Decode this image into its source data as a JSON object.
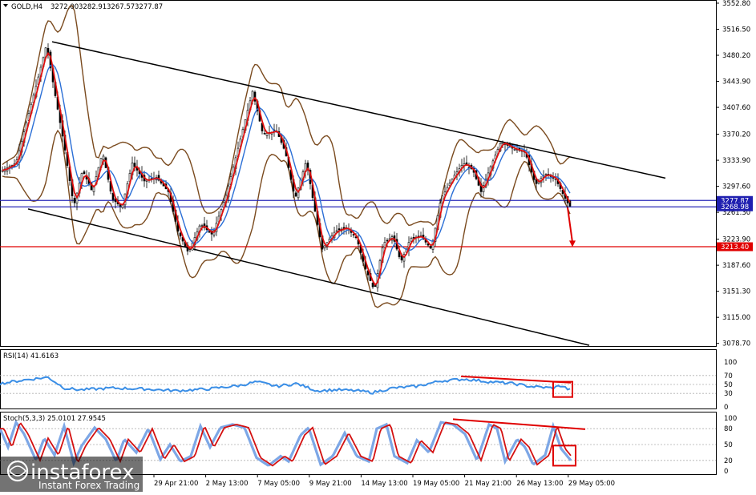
{
  "window": {
    "symbol_header": "GOLD,H4",
    "ohlc": [
      "3272.00",
      "3282.91",
      "3267.57",
      "3277.87"
    ]
  },
  "chart_data": [
    {
      "type": "line",
      "panel": "price",
      "title": "GOLD,H4",
      "price_axis_ticks": [
        "3552.80",
        "3516.50",
        "3480.20",
        "3443.90",
        "3407.60",
        "3370.20",
        "3333.90",
        "3297.60",
        "3261.30",
        "3223.90",
        "3187.60",
        "3151.30",
        "3115.00",
        "3078.70"
      ],
      "ylim": [
        3075,
        3555
      ],
      "price_tags": [
        {
          "label": "3277.87",
          "value": 3277.87,
          "color": "#1f1fb0"
        },
        {
          "label": "3268.98",
          "value": 3268.98,
          "color": "#1f1fb0"
        },
        {
          "label": "3213.40",
          "value": 3213.4,
          "color": "#e00000"
        }
      ],
      "horizontal_levels": [
        {
          "value": 3277.87,
          "color": "#2a2ab8"
        },
        {
          "value": 3268.98,
          "color": "#2a2ab8"
        },
        {
          "value": 3213.4,
          "color": "#e00000"
        }
      ],
      "channel_upper": [
        {
          "bar": 65,
          "price": 3499
        },
        {
          "bar": 830,
          "price": 3309
        }
      ],
      "channel_lower": [
        {
          "bar": 35,
          "price": 3266
        },
        {
          "bar": 735,
          "price": 3076
        }
      ],
      "close_path": [
        [
          0,
          3318
        ],
        [
          20,
          3330
        ],
        [
          35,
          3395
        ],
        [
          48,
          3450
        ],
        [
          58,
          3495
        ],
        [
          68,
          3430
        ],
        [
          80,
          3355
        ],
        [
          92,
          3270
        ],
        [
          103,
          3320
        ],
        [
          115,
          3290
        ],
        [
          128,
          3345
        ],
        [
          140,
          3280
        ],
        [
          152,
          3268
        ],
        [
          165,
          3330
        ],
        [
          180,
          3305
        ],
        [
          195,
          3310
        ],
        [
          210,
          3290
        ],
        [
          222,
          3235
        ],
        [
          235,
          3205
        ],
        [
          250,
          3245
        ],
        [
          265,
          3230
        ],
        [
          282,
          3285
        ],
        [
          298,
          3355
        ],
        [
          315,
          3430
        ],
        [
          328,
          3370
        ],
        [
          345,
          3375
        ],
        [
          356,
          3345
        ],
        [
          368,
          3280
        ],
        [
          382,
          3333
        ],
        [
          395,
          3250
        ],
        [
          402,
          3210
        ],
        [
          418,
          3235
        ],
        [
          432,
          3240
        ],
        [
          445,
          3225
        ],
        [
          455,
          3185
        ],
        [
          467,
          3152
        ],
        [
          478,
          3218
        ],
        [
          490,
          3228
        ],
        [
          500,
          3192
        ],
        [
          512,
          3225
        ],
        [
          525,
          3228
        ],
        [
          538,
          3210
        ],
        [
          550,
          3280
        ],
        [
          565,
          3310
        ],
        [
          578,
          3330
        ],
        [
          590,
          3320
        ],
        [
          600,
          3290
        ],
        [
          612,
          3325
        ],
        [
          625,
          3360
        ],
        [
          640,
          3350
        ],
        [
          655,
          3345
        ],
        [
          668,
          3300
        ],
        [
          680,
          3315
        ],
        [
          693,
          3308
        ],
        [
          703,
          3285
        ],
        [
          710,
          3270
        ]
      ],
      "forecast_arrow": {
        "from": {
          "bar": 708,
          "price": 3268
        },
        "to": {
          "bar": 714,
          "price": 3213
        },
        "color": "#e00000"
      },
      "x_tick_labels": [
        "29 Apr 21:00",
        "2 May 13:00",
        "7 May 05:00",
        "9 May 21:00",
        "14 May 13:00",
        "19 May 05:00",
        "21 May 21:00",
        "26 May 13:00",
        "29 May 05:00"
      ]
    },
    {
      "type": "line",
      "panel": "rsi",
      "title": "RSI(14) 41.6163",
      "ylim": [
        0,
        100
      ],
      "levels": [
        "100",
        "70",
        "50",
        "30",
        "0"
      ],
      "series": [
        {
          "values": [
            [
              0,
              52
            ],
            [
              30,
              60
            ],
            [
              60,
              66
            ],
            [
              80,
              42
            ],
            [
              100,
              38
            ],
            [
              140,
              42
            ],
            [
              180,
              40
            ],
            [
              220,
              36
            ],
            [
              260,
              40
            ],
            [
              300,
              48
            ],
            [
              320,
              56
            ],
            [
              345,
              46
            ],
            [
              370,
              52
            ],
            [
              395,
              36
            ],
            [
              420,
              38
            ],
            [
              445,
              36
            ],
            [
              465,
              32
            ],
            [
              490,
              42
            ],
            [
              520,
              46
            ],
            [
              550,
              58
            ],
            [
              580,
              62
            ],
            [
              610,
              56
            ],
            [
              640,
              52
            ],
            [
              660,
              46
            ],
            [
              690,
              42
            ],
            [
              700,
              48
            ],
            [
              710,
              38
            ]
          ]
        }
      ],
      "divergence_line": [
        {
          "bar": 575,
          "value": 68
        },
        {
          "bar": 712,
          "value": 54
        }
      ],
      "highlight_box": {
        "bar_from": 690,
        "bar_to": 714,
        "value_from": 22,
        "value_to": 56
      }
    },
    {
      "type": "line",
      "panel": "stochastic",
      "title": "Stoch(5,3,3) 25.0101 27.9545",
      "ylim": [
        0,
        100
      ],
      "levels": [
        "100",
        "80",
        "50",
        "20",
        "0"
      ],
      "main_line": [
        [
          0,
          80
        ],
        [
          10,
          45
        ],
        [
          20,
          92
        ],
        [
          30,
          70
        ],
        [
          45,
          20
        ],
        [
          55,
          62
        ],
        [
          68,
          30
        ],
        [
          80,
          85
        ],
        [
          92,
          15
        ],
        [
          102,
          48
        ],
        [
          118,
          82
        ],
        [
          132,
          60
        ],
        [
          145,
          18
        ],
        [
          155,
          60
        ],
        [
          170,
          35
        ],
        [
          185,
          80
        ],
        [
          200,
          22
        ],
        [
          212,
          50
        ],
        [
          225,
          18
        ],
        [
          238,
          28
        ],
        [
          250,
          85
        ],
        [
          262,
          45
        ],
        [
          275,
          82
        ],
        [
          290,
          88
        ],
        [
          305,
          82
        ],
        [
          320,
          25
        ],
        [
          335,
          10
        ],
        [
          350,
          28
        ],
        [
          360,
          18
        ],
        [
          375,
          68
        ],
        [
          385,
          82
        ],
        [
          400,
          12
        ],
        [
          415,
          28
        ],
        [
          430,
          72
        ],
        [
          445,
          28
        ],
        [
          460,
          18
        ],
        [
          470,
          80
        ],
        [
          482,
          88
        ],
        [
          492,
          28
        ],
        [
          508,
          15
        ],
        [
          520,
          58
        ],
        [
          535,
          35
        ],
        [
          550,
          92
        ],
        [
          565,
          88
        ],
        [
          580,
          70
        ],
        [
          595,
          20
        ],
        [
          610,
          88
        ],
        [
          620,
          80
        ],
        [
          630,
          18
        ],
        [
          645,
          60
        ],
        [
          655,
          45
        ],
        [
          665,
          12
        ],
        [
          680,
          30
        ],
        [
          690,
          85
        ],
        [
          700,
          42
        ],
        [
          712,
          20
        ]
      ],
      "signal_offset": 5,
      "divergence_line": [
        {
          "bar": 565,
          "value": 98
        },
        {
          "bar": 730,
          "value": 79
        }
      ],
      "highlight_box": {
        "bar_from": 690,
        "bar_to": 718,
        "value_from": 10,
        "value_to": 48
      }
    }
  ],
  "branding": {
    "logo_text": "instaforex",
    "tagline": "Instant Forex Trading"
  }
}
